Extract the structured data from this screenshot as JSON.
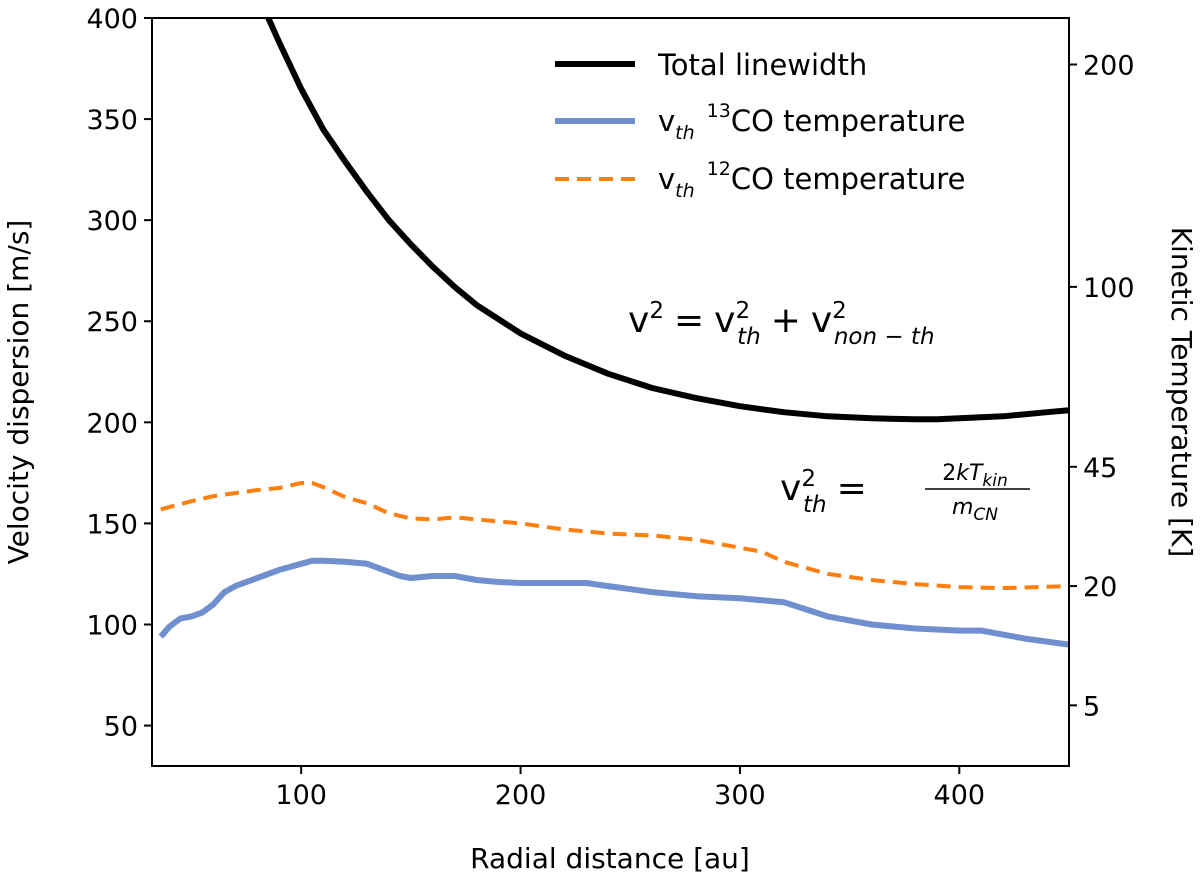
{
  "chart_data": {
    "type": "line",
    "xlabel": "Radial distance [au]",
    "ylabel": "Velocity dispersion [m/s]",
    "y2label": "Kinetic Temperature [K]",
    "xlim": [
      32,
      450
    ],
    "ylim": [
      30,
      400
    ],
    "xticks": [
      100,
      200,
      300,
      400
    ],
    "yticks": [
      50,
      100,
      150,
      200,
      250,
      300,
      350,
      400
    ],
    "y2ticks": [
      {
        "label": "200",
        "at_velocity": 377
      },
      {
        "label": "100",
        "at_velocity": 267
      },
      {
        "label": "45",
        "at_velocity": 178
      },
      {
        "label": "20",
        "at_velocity": 119
      },
      {
        "label": "5",
        "at_velocity": 60
      }
    ],
    "legend_position": "top-right",
    "series": [
      {
        "name": "Total linewidth",
        "color": "#000000",
        "style": "solid",
        "x": [
          85,
          90,
          100,
          110,
          120,
          130,
          140,
          150,
          160,
          170,
          180,
          190,
          200,
          220,
          240,
          260,
          280,
          300,
          320,
          340,
          360,
          380,
          390,
          400,
          420,
          440,
          450
        ],
        "y": [
          400,
          388,
          365,
          345,
          329,
          314,
          300,
          288,
          277,
          267,
          258,
          251,
          244,
          233,
          224,
          217,
          212,
          208,
          205,
          203,
          202,
          201.5,
          201.5,
          202,
          203,
          205,
          206
        ]
      },
      {
        "name": "v_th ¹³CO temperature",
        "color": "#6f8fcf",
        "style": "solid",
        "x": [
          36,
          40,
          45,
          50,
          55,
          60,
          65,
          70,
          80,
          90,
          100,
          105,
          110,
          120,
          130,
          140,
          145,
          150,
          160,
          170,
          180,
          190,
          200,
          220,
          230,
          240,
          260,
          280,
          300,
          310,
          320,
          340,
          360,
          380,
          400,
          410,
          430,
          450
        ],
        "y": [
          94,
          99,
          103,
          104,
          106,
          110,
          116,
          119,
          123,
          127,
          130,
          131.5,
          131.5,
          131,
          130,
          126,
          124,
          123,
          124,
          124,
          122,
          121,
          120.5,
          120.5,
          120.5,
          119,
          116,
          114,
          113,
          112,
          111,
          104,
          100,
          98,
          97,
          97,
          93,
          90
        ]
      },
      {
        "name": "v_th ¹²CO temperature",
        "color": "#ff7f0e",
        "style": "dashed",
        "x": [
          36,
          50,
          60,
          70,
          80,
          90,
          100,
          105,
          110,
          120,
          130,
          140,
          150,
          160,
          170,
          180,
          200,
          220,
          240,
          260,
          280,
          300,
          310,
          320,
          340,
          360,
          380,
          400,
          420,
          450
        ],
        "y": [
          157,
          161,
          163.5,
          165,
          166.5,
          167.5,
          170,
          170,
          168,
          163,
          160,
          155,
          152.5,
          152,
          153,
          152,
          150,
          147,
          145,
          144,
          142,
          138,
          136,
          131,
          125,
          122,
          120,
          118.5,
          118,
          119
        ]
      }
    ],
    "annotations": [
      {
        "kind": "formula",
        "text": "v² = v²_th + v²_non-th"
      },
      {
        "kind": "formula",
        "text": "v²_th = 2kT_kin / m_CN"
      }
    ]
  },
  "formula1": {
    "v": "v",
    "sq1": "2",
    "eq": "=",
    "v2": "v",
    "sup2": "2",
    "sub2": "th",
    "plus": "+",
    "v3": "v",
    "sup3": "2",
    "sub3": "non − th"
  },
  "formula2": {
    "v": "v",
    "sup": "2",
    "sub": "th",
    "eq": "=",
    "num_a": "2",
    "num_b": "kT",
    "num_sub": "kin",
    "den": "m",
    "den_sub": "CN"
  },
  "legend": [
    {
      "label_main": "Total linewidth",
      "label_pre": "",
      "label_sub": "",
      "label_sup": ""
    },
    {
      "label_main": "CO temperature",
      "label_pre": "v",
      "label_sub": "th",
      "label_sup": "13"
    },
    {
      "label_main": "CO temperature",
      "label_pre": "v",
      "label_sub": "th",
      "label_sup": "12"
    }
  ]
}
